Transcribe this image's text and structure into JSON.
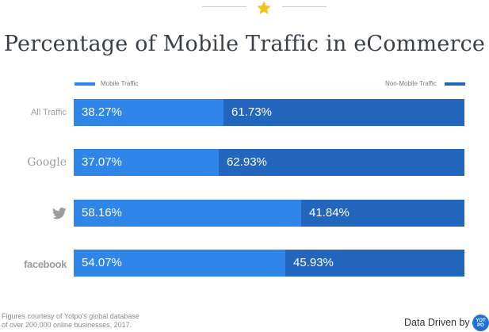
{
  "title": "Percentage of Mobile Traffic in eCommerce",
  "colors": {
    "mobile": "#2f86e8",
    "non_mobile": "#2266bd",
    "star": "#f3c117"
  },
  "icons": {
    "header": "star-icon",
    "twitter": "twitter-bird-icon"
  },
  "chart_data": {
    "type": "bar",
    "orientation": "horizontal",
    "stacked": true,
    "categories": [
      "All Traffic",
      "Google",
      "Twitter",
      "facebook"
    ],
    "category_labels": [
      "All Traffic",
      "Google",
      "",
      "facebook"
    ],
    "series": [
      {
        "name": "Mobile Traffic",
        "values": [
          38.27,
          37.07,
          58.16,
          54.07
        ],
        "labels": [
          "38.27%",
          "37.07%",
          "58.16%",
          "54.07%"
        ]
      },
      {
        "name": "Non-Mobile Traffic",
        "values": [
          61.73,
          62.93,
          41.84,
          45.93
        ],
        "labels": [
          "61.73%",
          "62.93%",
          "41.84%",
          "45.93%"
        ]
      }
    ],
    "xlim": [
      0,
      100
    ],
    "legend_placement": "top",
    "grid": false
  },
  "footnote": {
    "line1": "Figures courtesy of Yotpo's global database",
    "line2": "of over 200,000 online businesses, 2017."
  },
  "brand": {
    "text": "Data Driven by",
    "logo_line1": "YOT",
    "logo_line2": "PO"
  }
}
